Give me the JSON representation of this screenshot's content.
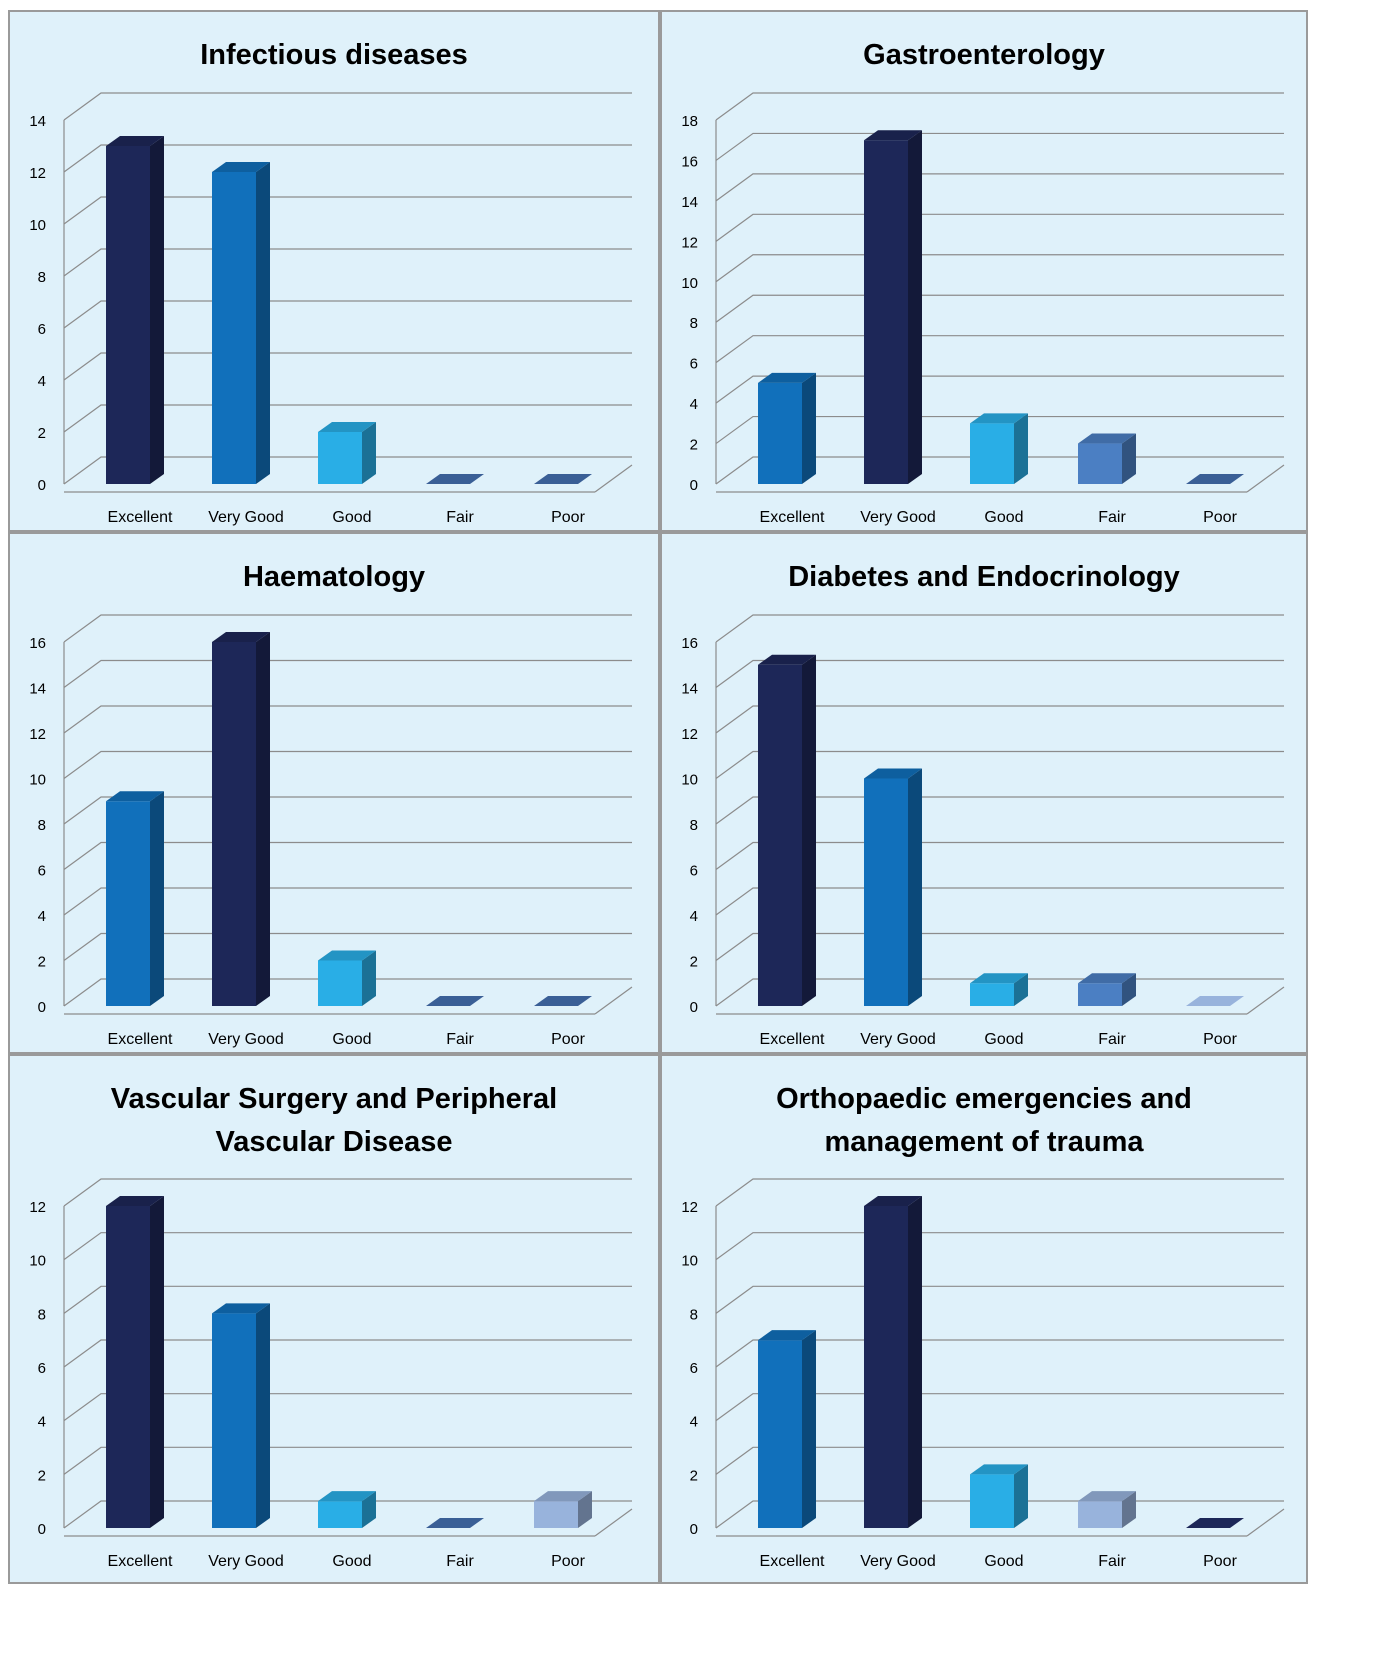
{
  "categories": [
    "Excellent",
    "Very Good",
    "Good",
    "Fair",
    "Poor"
  ],
  "colors": {
    "panel_bg": "#dff1fa",
    "gridline": "#8c8c8c",
    "navy": "#1d2758",
    "blue": "#1170bb",
    "cyan": "#29aee6",
    "steel": "#4b7fc3",
    "lavender": "#98b3dc",
    "zero_bar": "#3a5f96"
  },
  "chart_data": [
    {
      "type": "bar",
      "title": "Infectious diseases",
      "categories": [
        "Excellent",
        "Very Good",
        "Good",
        "Fair",
        "Poor"
      ],
      "values": [
        13,
        12,
        2,
        0,
        0
      ],
      "bar_colors": [
        "navy",
        "blue",
        "cyan",
        "zero_bar",
        "zero_bar"
      ],
      "ylim": [
        0,
        14
      ],
      "yticks": [
        "0",
        "2",
        "4",
        "6",
        "8",
        "10",
        "12",
        "14"
      ],
      "grid": true
    },
    {
      "type": "bar",
      "title": "Gastroenterology",
      "categories": [
        "Excellent",
        "Very Good",
        "Good",
        "Fair",
        "Poor"
      ],
      "values": [
        5,
        17,
        3,
        2,
        0
      ],
      "bar_colors": [
        "blue",
        "navy",
        "cyan",
        "steel",
        "zero_bar"
      ],
      "ylim": [
        0,
        18
      ],
      "yticks": [
        "0",
        "2",
        "4",
        "6",
        "8",
        "10",
        "12",
        "14",
        "16",
        "18"
      ],
      "grid": true
    },
    {
      "type": "bar",
      "title": "Haematology",
      "categories": [
        "Excellent",
        "Very Good",
        "Good",
        "Fair",
        "Poor"
      ],
      "values": [
        9,
        16,
        2,
        0,
        0
      ],
      "bar_colors": [
        "blue",
        "navy",
        "cyan",
        "zero_bar",
        "zero_bar"
      ],
      "ylim": [
        0,
        16
      ],
      "yticks": [
        "0",
        "2",
        "4",
        "6",
        "8",
        "10",
        "12",
        "14",
        "16"
      ],
      "grid": true
    },
    {
      "type": "bar",
      "title": "Diabetes and Endocrinology",
      "categories": [
        "Excellent",
        "Very Good",
        "Good",
        "Fair",
        "Poor"
      ],
      "values": [
        15,
        10,
        1,
        1,
        0
      ],
      "bar_colors": [
        "navy",
        "blue",
        "cyan",
        "steel",
        "lavender"
      ],
      "ylim": [
        0,
        16
      ],
      "yticks": [
        "0",
        "2",
        "4",
        "6",
        "8",
        "10",
        "12",
        "14",
        "16"
      ],
      "grid": true
    },
    {
      "type": "bar",
      "title": "Vascular Surgery and Peripheral\nVascular Disease",
      "categories": [
        "Excellent",
        "Very Good",
        "Good",
        "Fair",
        "Poor"
      ],
      "values": [
        12,
        8,
        1,
        0,
        1
      ],
      "bar_colors": [
        "navy",
        "blue",
        "cyan",
        "zero_bar",
        "lavender"
      ],
      "ylim": [
        0,
        12
      ],
      "yticks": [
        "0",
        "2",
        "4",
        "6",
        "8",
        "10",
        "12"
      ],
      "grid": true
    },
    {
      "type": "bar",
      "title": "Orthopaedic emergencies and\nmanagement of trauma",
      "categories": [
        "Excellent",
        "Very Good",
        "Good",
        "Fair",
        "Poor"
      ],
      "values": [
        7,
        12,
        2,
        1,
        0
      ],
      "bar_colors": [
        "blue",
        "navy",
        "cyan",
        "lavender",
        "navy"
      ],
      "ylim": [
        0,
        12
      ],
      "yticks": [
        "0",
        "2",
        "4",
        "6",
        "8",
        "10",
        "12"
      ],
      "grid": true
    }
  ]
}
